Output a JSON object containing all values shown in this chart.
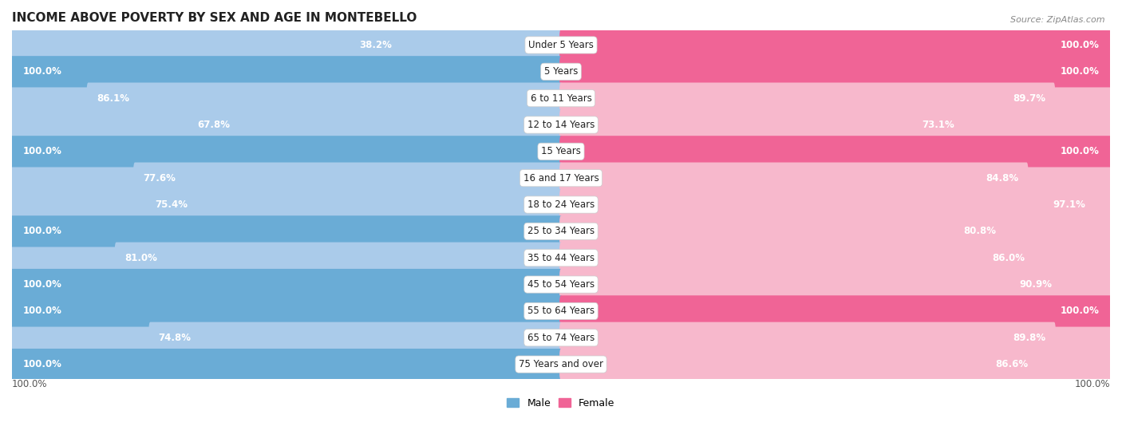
{
  "title": "INCOME ABOVE POVERTY BY SEX AND AGE IN MONTEBELLO",
  "source": "Source: ZipAtlas.com",
  "categories": [
    "Under 5 Years",
    "5 Years",
    "6 to 11 Years",
    "12 to 14 Years",
    "15 Years",
    "16 and 17 Years",
    "18 to 24 Years",
    "25 to 34 Years",
    "35 to 44 Years",
    "45 to 54 Years",
    "55 to 64 Years",
    "65 to 74 Years",
    "75 Years and over"
  ],
  "male_values": [
    38.2,
    100.0,
    86.1,
    67.8,
    100.0,
    77.6,
    75.4,
    100.0,
    81.0,
    100.0,
    100.0,
    74.8,
    100.0
  ],
  "female_values": [
    100.0,
    100.0,
    89.7,
    73.1,
    100.0,
    84.8,
    97.1,
    80.8,
    86.0,
    90.9,
    100.0,
    89.8,
    86.6
  ],
  "male_color_light": "#aacbea",
  "male_color_full": "#6aacd6",
  "female_color_light": "#f7b8cc",
  "female_color_full": "#f06496",
  "row_bg_odd": "#ececec",
  "row_bg_even": "#f8f8f8",
  "bar_height": 0.62,
  "max_val": 100.0,
  "legend_male": "Male",
  "legend_female": "Female"
}
